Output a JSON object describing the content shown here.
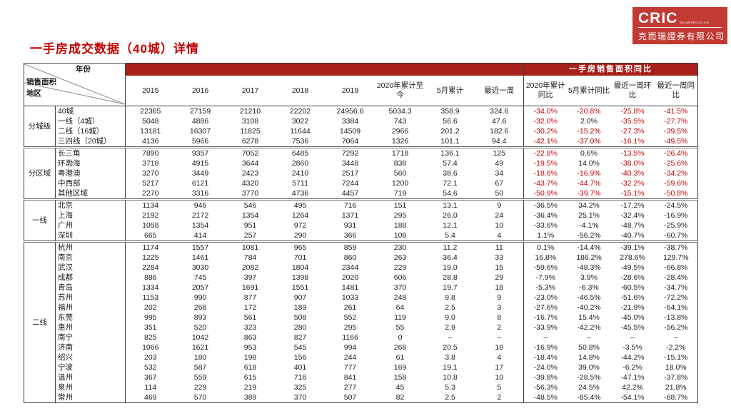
{
  "page": {
    "title": "一手房成交数据（40城）详情"
  },
  "logo": {
    "brand": "CRIC",
    "brand_sub": "SECURITIES CO.,LTD",
    "company": "克而瑞證券有限公司"
  },
  "colors": {
    "accent_red": "#C00000",
    "band_red": "#A8201A",
    "logo_red": "#C33A35",
    "negative_red": "#C00000",
    "text_black": "#1a1a1a"
  },
  "table": {
    "corner": {
      "year": "年份",
      "area": "销售面积",
      "region": "地区"
    },
    "band_right_label": "一手房销售面积同比",
    "columns": [
      "2015",
      "2016",
      "2017",
      "2018",
      "2019",
      "2020年累计至今",
      "5月累计",
      "最近一周",
      "2020年累计同比",
      "5月累计同比",
      "最近一周环比",
      "最近一周同比"
    ],
    "groups": [
      {
        "label": "分城级",
        "red_negatives": true,
        "rows": [
          {
            "label": "40城",
            "values": [
              "22365",
              "27159",
              "21210",
              "22202",
              "24956.6",
              "5034.3",
              "358.9",
              "324.6",
              "-34.0%",
              "-20.8%",
              "-25.8%",
              "-41.5%"
            ]
          },
          {
            "label": "一线（4城）",
            "values": [
              "5048",
              "4886",
              "3108",
              "3022",
              "3384",
              "743",
              "56.6",
              "47.6",
              "-32.0%",
              "2.0%",
              "-35.5%",
              "-27.7%"
            ]
          },
          {
            "label": "二线（16城）",
            "values": [
              "13181",
              "16307",
              "11825",
              "11644",
              "14509",
              "2966",
              "201.2",
              "182.6",
              "-30.2%",
              "-15.2%",
              "-27.3%",
              "-39.5%"
            ]
          },
          {
            "label": "三四线（20城）",
            "values": [
              "4136",
              "5966",
              "6278",
              "7536",
              "7064",
              "1326",
              "101.1",
              "94.4",
              "-42.1%",
              "-37.0%",
              "-16.1%",
              "-49.5%"
            ]
          }
        ]
      },
      {
        "label": "分区域",
        "red_negatives": true,
        "rows": [
          {
            "label": "长三角",
            "values": [
              "7890",
              "9357",
              "7052",
              "6485",
              "7292",
              "1718",
              "136.1",
              "125",
              "-22.8%",
              "0.6%",
              "-13.5%",
              "-26.4%"
            ]
          },
          {
            "label": "环渤海",
            "values": [
              "3718",
              "4915",
              "3644",
              "2860",
              "3448",
              "838",
              "57.4",
              "49",
              "-19.5%",
              "14.0%",
              "-38.0%",
              "-25.6%"
            ]
          },
          {
            "label": "粤港澳",
            "values": [
              "3270",
              "3449",
              "2423",
              "2410",
              "2517",
              "560",
              "38.6",
              "34",
              "-18.6%",
              "-16.9%",
              "-40.3%",
              "-34.2%"
            ]
          },
          {
            "label": "中西部",
            "values": [
              "5217",
              "6121",
              "4320",
              "5711",
              "7244",
              "1200",
              "72.1",
              "67",
              "-43.7%",
              "-44.7%",
              "-32.2%",
              "-59.6%"
            ]
          },
          {
            "label": "其他区域",
            "values": [
              "2270",
              "3316",
              "3770",
              "4736",
              "4457",
              "719",
              "54.6",
              "50",
              "-50.9%",
              "-39.7%",
              "-15.1%",
              "-50.8%"
            ]
          }
        ]
      },
      {
        "label": "一线",
        "red_negatives": false,
        "rows": [
          {
            "label": "北京",
            "values": [
              "1134",
              "946",
              "546",
              "495",
              "716",
              "151",
              "13.1",
              "9",
              "-36.5%",
              "34.2%",
              "-17.2%",
              "-24.5%"
            ]
          },
          {
            "label": "上海",
            "values": [
              "2192",
              "2172",
              "1354",
              "1264",
              "1371",
              "295",
              "26.0",
              "24",
              "-36.4%",
              "25.1%",
              "-32.4%",
              "-16.9%"
            ]
          },
          {
            "label": "广州",
            "values": [
              "1058",
              "1354",
              "951",
              "972",
              "931",
              "188",
              "12.1",
              "10",
              "-33.6%",
              "-4.1%",
              "-48.7%",
              "-25.9%"
            ]
          },
          {
            "label": "深圳",
            "values": [
              "665",
              "414",
              "257",
              "290",
              "366",
              "108",
              "5.4",
              "4",
              "1.1%",
              "-56.2%",
              "-40.7%",
              "-60.7%"
            ]
          }
        ]
      },
      {
        "label": "二线",
        "red_negatives": false,
        "rows": [
          {
            "label": "杭州",
            "values": [
              "1174",
              "1557",
              "1081",
              "965",
              "859",
              "230",
              "11.2",
              "11",
              "0.1%",
              "-14.4%",
              "-39.1%",
              "-38.7%"
            ]
          },
          {
            "label": "南京",
            "values": [
              "1225",
              "1461",
              "784",
              "701",
              "860",
              "263",
              "36.4",
              "33",
              "16.8%",
              "186.2%",
              "278.6%",
              "129.7%"
            ]
          },
          {
            "label": "武汉",
            "values": [
              "2284",
              "3030",
              "2082",
              "1804",
              "2344",
              "229",
              "19.0",
              "15",
              "-59.6%",
              "-48.3%",
              "-49.5%",
              "-66.8%"
            ]
          },
          {
            "label": "成都",
            "values": [
              "886",
              "745",
              "397",
              "1398",
              "2020",
              "606",
              "28.8",
              "29",
              "-7.9%",
              "3.9%",
              "-28.6%",
              "-28.4%"
            ]
          },
          {
            "label": "青岛",
            "values": [
              "1334",
              "2057",
              "1691",
              "1551",
              "1481",
              "370",
              "19.7",
              "18",
              "-5.3%",
              "-6.3%",
              "-60.5%",
              "-34.7%"
            ]
          },
          {
            "label": "苏州",
            "values": [
              "1153",
              "990",
              "877",
              "907",
              "1033",
              "248",
              "9.8",
              "9",
              "-23.0%",
              "-46.5%",
              "-51.6%",
              "-72.2%"
            ]
          },
          {
            "label": "福州",
            "values": [
              "202",
              "268",
              "172",
              "189",
              "261",
              "64",
              "2.5",
              "3",
              "-27.6%",
              "-40.2%",
              "-21.9%",
              "-64.1%"
            ]
          },
          {
            "label": "东莞",
            "values": [
              "995",
              "893",
              "561",
              "508",
              "552",
              "119",
              "9.0",
              "8",
              "-16.7%",
              "15.4%",
              "-45.0%",
              "-13.8%"
            ]
          },
          {
            "label": "惠州",
            "values": [
              "351",
              "520",
              "323",
              "280",
              "295",
              "55",
              "2.9",
              "2",
              "-33.9%",
              "-42.2%",
              "-45.5%",
              "-56.2%"
            ]
          },
          {
            "label": "南宁",
            "values": [
              "825",
              "1042",
              "863",
              "827",
              "1166",
              "0",
              "–",
              "–",
              "–",
              "–",
              "–",
              "–"
            ]
          },
          {
            "label": "济南",
            "values": [
              "1066",
              "1621",
              "953",
              "545",
              "994",
              "268",
              "20.5",
              "18",
              "-16.9%",
              "50.8%",
              "-3.5%",
              "-2.2%"
            ]
          },
          {
            "label": "绍兴",
            "values": [
              "203",
              "180",
              "198",
              "156",
              "244",
              "61",
              "3.8",
              "4",
              "-18.4%",
              "14.8%",
              "-44.2%",
              "-15.1%"
            ]
          },
          {
            "label": "宁波",
            "values": [
              "532",
              "587",
              "618",
              "401",
              "777",
              "169",
              "19.1",
              "17",
              "-24.0%",
              "39.0%",
              "-6.2%",
              "18.0%"
            ]
          },
          {
            "label": "温州",
            "values": [
              "367",
              "559",
              "615",
              "716",
              "841",
              "158",
              "10.8",
              "10",
              "-39.8%",
              "-28.5%",
              "-47.1%",
              "-37.8%"
            ]
          },
          {
            "label": "泉州",
            "values": [
              "114",
              "229",
              "219",
              "325",
              "277",
              "45",
              "5.3",
              "5",
              "-56.3%",
              "24.5%",
              "42.2%",
              "21.8%"
            ]
          },
          {
            "label": "常州",
            "values": [
              "469",
              "570",
              "389",
              "370",
              "507",
              "82",
              "2.5",
              "2",
              "-48.5%",
              "-85.4%",
              "-54.1%",
              "-88.7%"
            ]
          }
        ]
      }
    ]
  }
}
